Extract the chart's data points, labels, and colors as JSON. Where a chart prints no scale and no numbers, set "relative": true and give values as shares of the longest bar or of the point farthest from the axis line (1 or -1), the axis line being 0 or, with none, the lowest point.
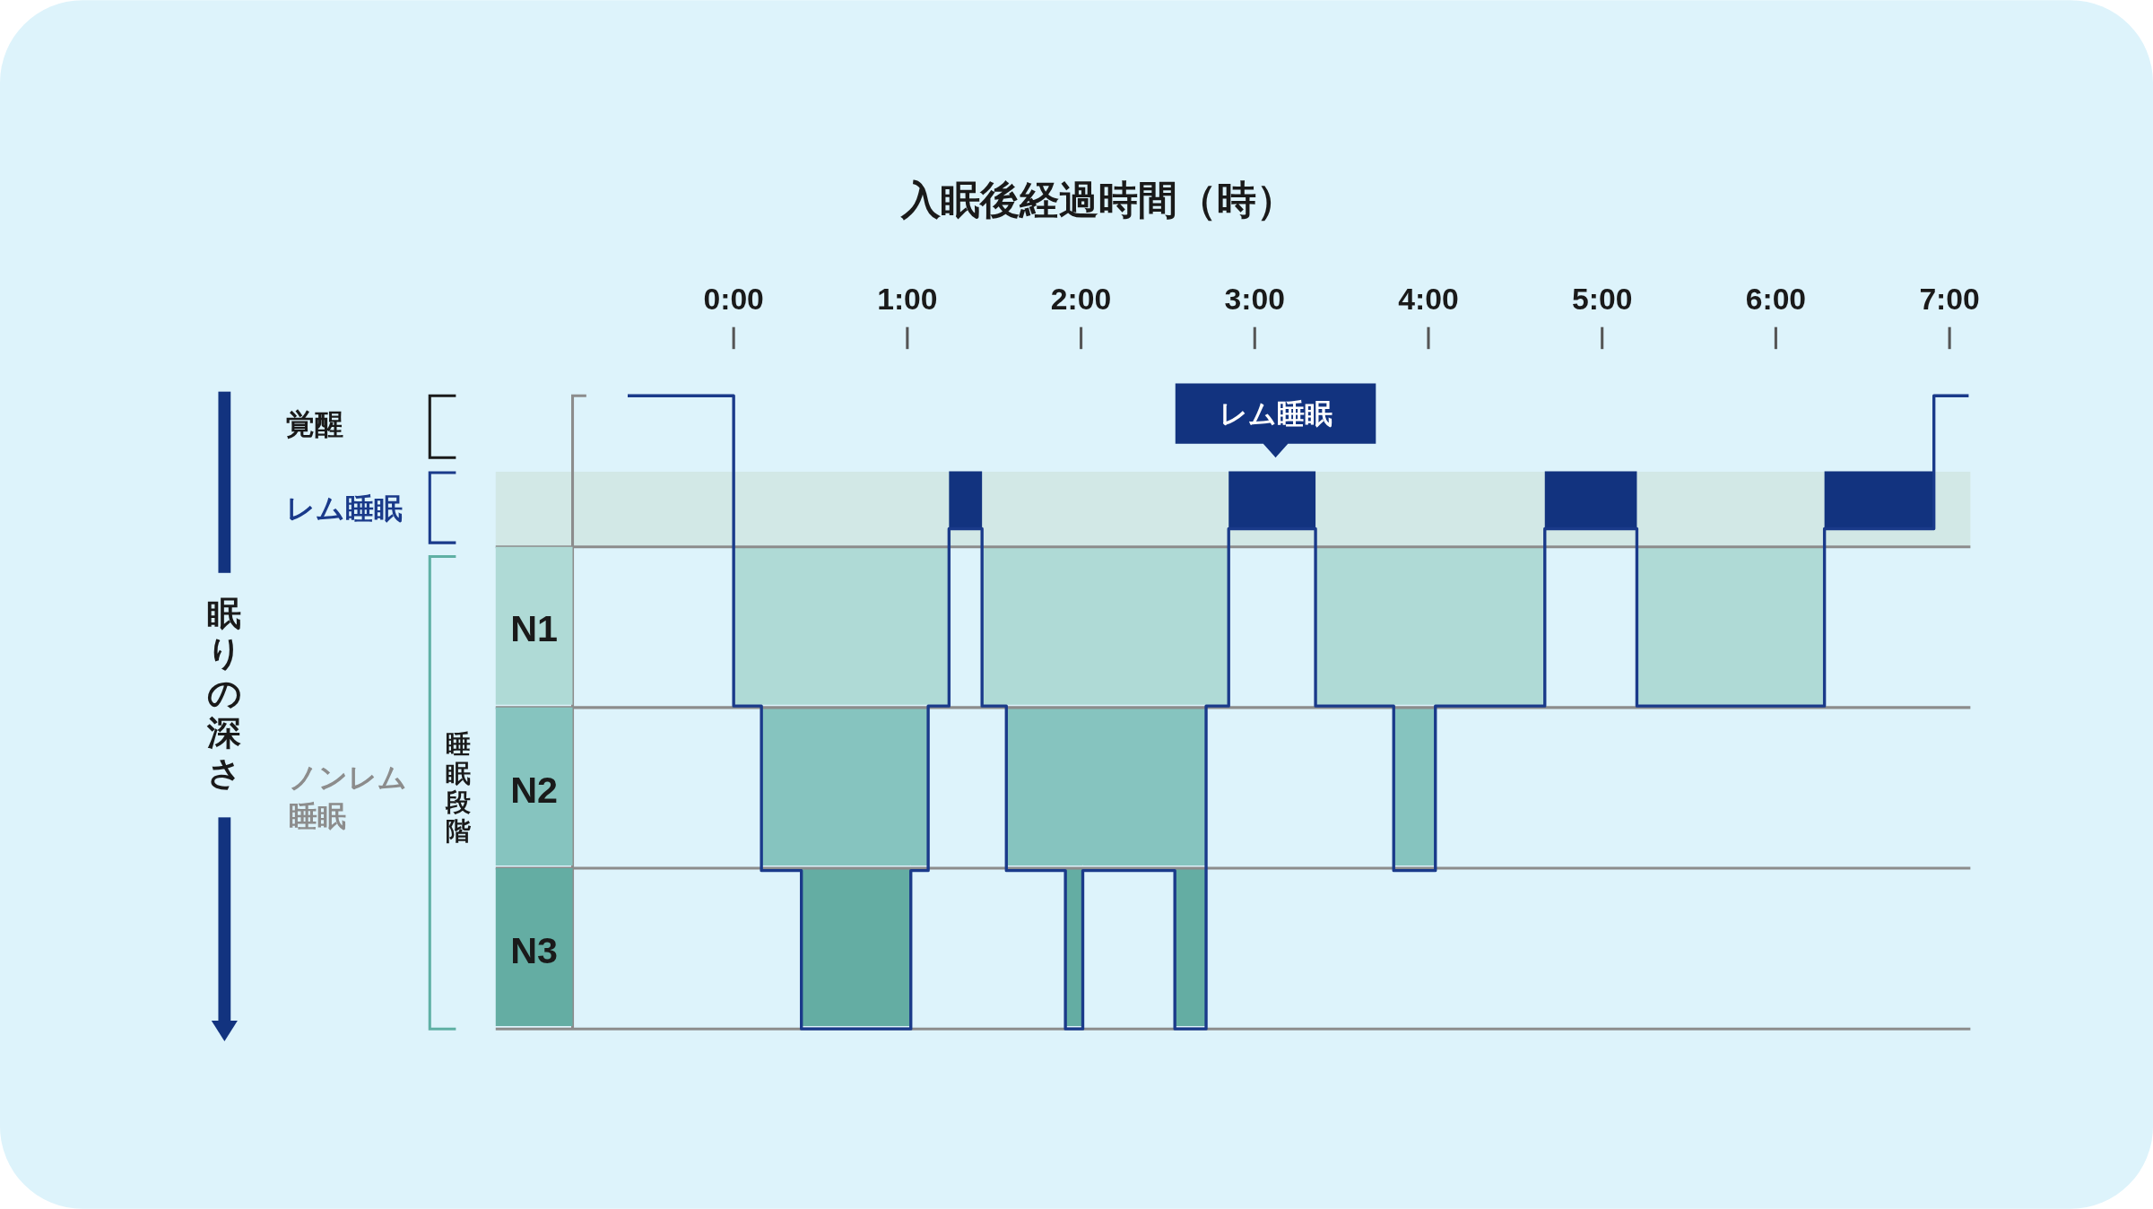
{
  "chart_data": {
    "type": "step",
    "xlabel": "入眠後経過時間（時）",
    "relative": true,
    "xlim": [
      -1.37,
      7.12
    ],
    "xticks": [
      {
        "value": 0,
        "label": "0:00"
      },
      {
        "value": 1,
        "label": "1:00"
      },
      {
        "value": 2,
        "label": "2:00"
      },
      {
        "value": 3,
        "label": "3:00"
      },
      {
        "value": 4,
        "label": "4:00"
      },
      {
        "value": 5,
        "label": "5:00"
      },
      {
        "value": 6,
        "label": "6:00"
      },
      {
        "value": 7,
        "label": "7:00"
      }
    ],
    "grid": "y",
    "bands": [
      {
        "axis": "y",
        "from": 0.76,
        "to": 0.88,
        "color": "#d2e8e6"
      }
    ],
    "series": [
      {
        "color": "#1a3a8a",
        "x": [
          -0.61,
          0,
          0.16,
          0.39,
          1.02,
          1.12,
          1.24,
          1.43,
          1.57,
          1.91,
          2.01,
          2.54,
          2.72,
          2.85,
          3.35,
          3.8,
          4.04,
          4.67,
          5.2,
          6.28,
          6.91,
          7.11
        ],
        "values": [
          1,
          0.51,
          0.25,
          0,
          0.25,
          0.51,
          0.79,
          0.51,
          0.25,
          0,
          0.25,
          0,
          0.51,
          0.79,
          0.51,
          0.25,
          0.51,
          0.79,
          0.51,
          0.79,
          1,
          1
        ]
      }
    ],
    "annotations": [
      "覚醒",
      "レム睡眠",
      "N1",
      "N2",
      "N3",
      "ノンレム睡眠",
      "睡眠段階",
      "レム睡眠",
      "眠りの深さ"
    ]
  }
}
